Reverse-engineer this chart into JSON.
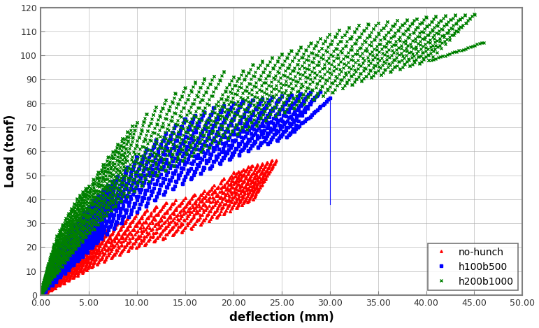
{
  "title": "",
  "xlabel": "deflection (mm)",
  "ylabel": "Load (tonf)",
  "xlim": [
    0,
    50
  ],
  "ylim": [
    0,
    120
  ],
  "xticks": [
    0,
    5,
    10,
    15,
    20,
    25,
    30,
    35,
    40,
    45,
    50
  ],
  "yticks": [
    0,
    10,
    20,
    30,
    40,
    50,
    60,
    70,
    80,
    90,
    100,
    110,
    120
  ],
  "xtick_labels": [
    "0.00",
    "5.00",
    "10.00",
    "15.00",
    "20.00",
    "25.00",
    "30.00",
    "35.00",
    "40.00",
    "45.00",
    "50.00"
  ],
  "series": [
    {
      "label": "no-hunch",
      "color": "#FF0000",
      "marker": "^",
      "markersize": 2.5,
      "linewidth": 0.0,
      "cycle_peaks_x": [
        1.5,
        2.0,
        2.5,
        3.0,
        3.5,
        4.0,
        4.5,
        5.0,
        5.5,
        6.0,
        6.5,
        7.0,
        8.0,
        9.0,
        10.0,
        11.0,
        12.0,
        13.0,
        14.0,
        15.0,
        16.0,
        17.0,
        18.0,
        19.0,
        20.0,
        20.5,
        21.0,
        21.5,
        22.0,
        22.5,
        23.0,
        23.5,
        24.0,
        24.5
      ],
      "cycle_peaks_y": [
        9.0,
        11.0,
        13.5,
        15.5,
        17.5,
        19.0,
        20.5,
        22.0,
        23.5,
        25.0,
        26.5,
        27.5,
        30.0,
        32.0,
        34.0,
        35.5,
        37.0,
        38.5,
        39.5,
        40.5,
        42.0,
        43.5,
        46.0,
        48.5,
        51.0,
        51.5,
        52.5,
        53.5,
        54.0,
        54.5,
        55.0,
        55.5,
        56.0,
        56.5
      ],
      "unload_ratio": 0.45
    },
    {
      "label": "h100b500",
      "color": "#0000FF",
      "marker": "s",
      "markersize": 2.5,
      "linewidth": 0.0,
      "cycle_peaks_x": [
        1.0,
        1.5,
        2.0,
        2.5,
        3.0,
        3.5,
        4.0,
        4.5,
        5.0,
        5.5,
        6.0,
        6.5,
        7.0,
        7.5,
        8.0,
        9.0,
        10.0,
        11.0,
        12.0,
        13.0,
        14.0,
        15.0,
        16.0,
        17.0,
        18.0,
        19.0,
        20.0,
        21.0,
        22.0,
        23.0,
        24.0,
        25.0,
        26.0,
        27.0,
        28.0,
        29.0,
        30.0
      ],
      "cycle_peaks_y": [
        12.0,
        16.0,
        20.0,
        23.5,
        27.0,
        29.5,
        32.0,
        34.5,
        37.0,
        39.5,
        41.5,
        43.5,
        45.5,
        47.5,
        49.5,
        53.5,
        57.5,
        61.0,
        64.5,
        67.5,
        71.0,
        73.5,
        75.0,
        76.5,
        78.0,
        79.0,
        80.0,
        81.0,
        81.5,
        82.0,
        82.5,
        83.0,
        83.5,
        84.0,
        84.5,
        85.0,
        82.0
      ],
      "unload_ratio": 0.45,
      "drop_x": 30.0,
      "drop_y_top": 82.0,
      "drop_y_bot": 38.0
    },
    {
      "label": "h200b1000",
      "color": "#008000",
      "marker": "x",
      "markersize": 2.5,
      "linewidth": 0.0,
      "cycle_peaks_x": [
        0.5,
        0.8,
        1.1,
        1.4,
        1.7,
        2.0,
        2.3,
        2.6,
        2.9,
        3.2,
        3.5,
        3.8,
        4.1,
        4.4,
        4.7,
        5.0,
        5.5,
        6.0,
        6.5,
        7.0,
        7.5,
        8.0,
        8.5,
        9.0,
        9.5,
        10.0,
        11.0,
        12.0,
        13.0,
        14.0,
        15.0,
        16.0,
        17.0,
        18.0,
        19.0,
        20.0,
        21.0,
        22.0,
        23.0,
        24.0,
        25.0,
        26.0,
        27.0,
        28.0,
        29.0,
        30.0,
        31.0,
        32.0,
        33.0,
        34.0,
        35.0,
        36.0,
        37.0,
        38.0,
        39.0,
        40.0,
        41.0,
        42.0,
        43.0,
        44.0,
        45.0,
        46.0
      ],
      "cycle_peaks_y": [
        8.0,
        13.0,
        17.0,
        21.0,
        24.5,
        27.0,
        29.5,
        32.0,
        34.0,
        36.0,
        38.0,
        40.0,
        41.5,
        43.0,
        44.5,
        45.5,
        48.5,
        51.5,
        54.5,
        57.5,
        60.0,
        63.0,
        65.5,
        68.0,
        70.5,
        72.0,
        75.5,
        78.5,
        81.5,
        84.0,
        86.5,
        88.5,
        90.0,
        91.5,
        93.0,
        91.0,
        93.5,
        96.0,
        97.5,
        99.0,
        100.5,
        102.0,
        103.5,
        105.0,
        107.0,
        109.0,
        110.5,
        111.5,
        112.5,
        113.0,
        113.5,
        114.0,
        114.5,
        115.0,
        115.5,
        116.0,
        116.2,
        116.5,
        116.7,
        116.8,
        117.0,
        105.5
      ],
      "unload_ratio": 0.35
    }
  ],
  "legend_loc": "lower right",
  "grid": true,
  "background_color": "#FFFFFF",
  "xlabel_fontsize": 12,
  "ylabel_fontsize": 12,
  "tick_fontsize": 9,
  "legend_fontsize": 10,
  "spine_color": "#808080"
}
